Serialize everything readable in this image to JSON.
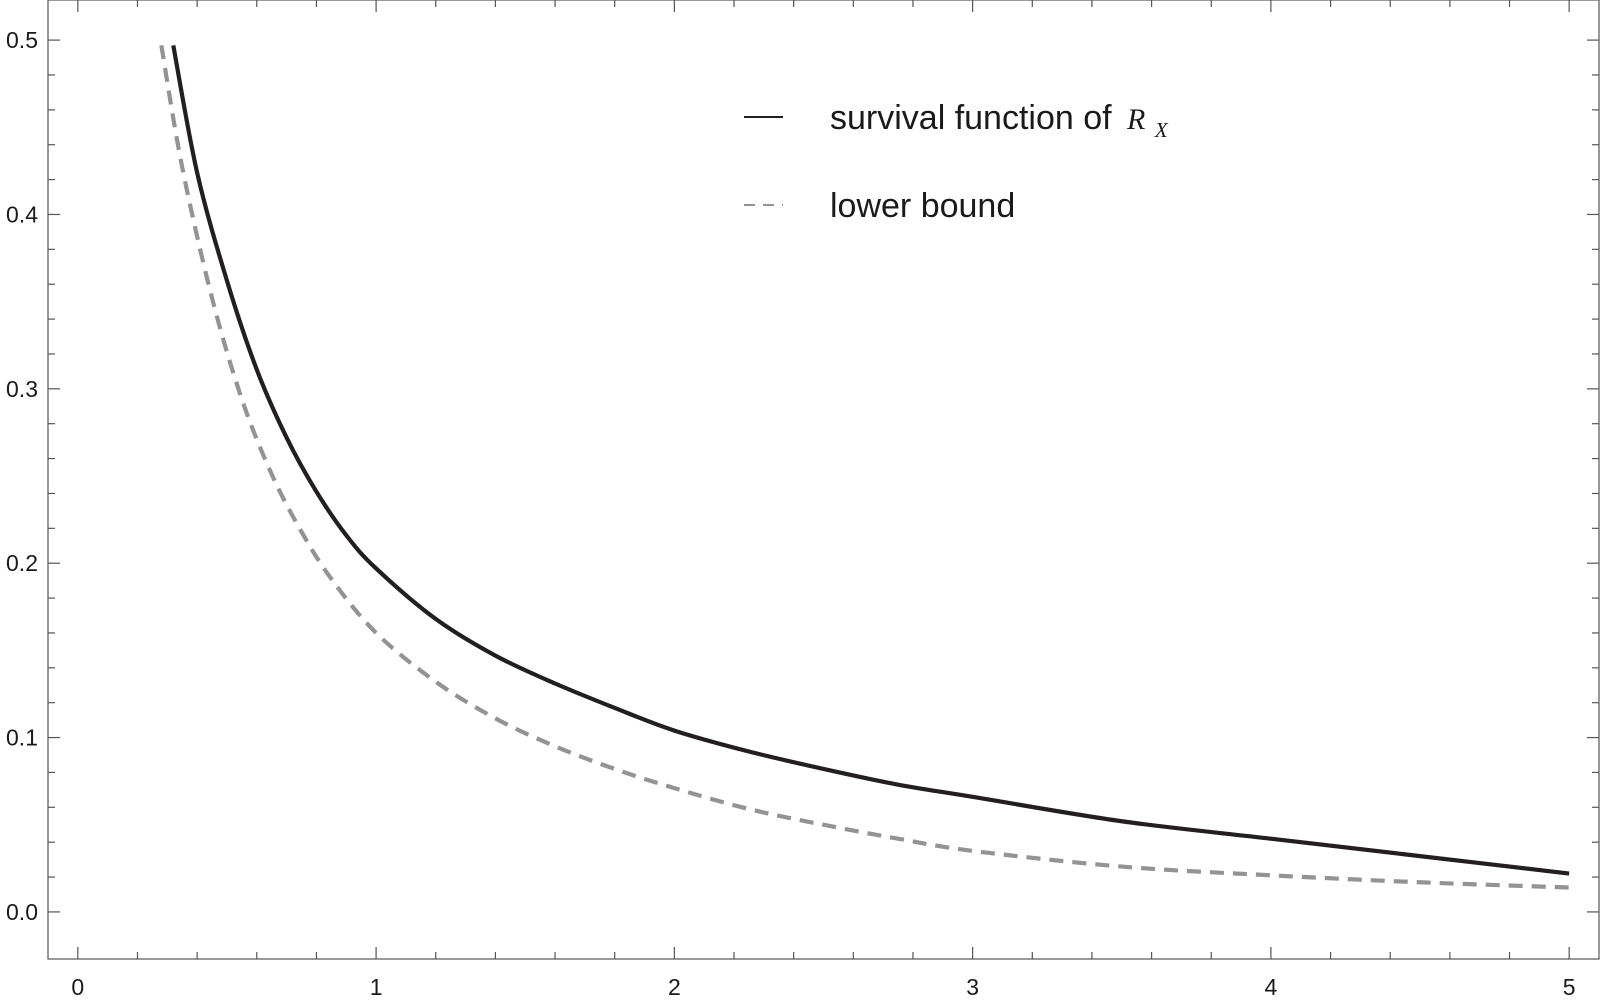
{
  "chart_data": {
    "type": "line",
    "xlim": [
      -0.1,
      5.1
    ],
    "ylim": [
      -0.027,
      0.523
    ],
    "x_ticks": [
      "0",
      "1",
      "2",
      "3",
      "4",
      "5"
    ],
    "y_ticks": [
      "0.0",
      "0.1",
      "0.2",
      "0.3",
      "0.4",
      "0.5"
    ],
    "frame_ticks_on_all_sides": true,
    "grid": false,
    "legend_position": "top-right",
    "series": [
      {
        "name": "survival function of",
        "name_math": "R",
        "name_math_subscript": "X",
        "color": "#231f20",
        "style": "solid",
        "x": [
          0.32,
          0.4,
          0.5,
          0.6,
          0.7,
          0.8,
          0.9,
          1.0,
          1.2,
          1.4,
          1.6,
          1.8,
          2.0,
          2.25,
          2.5,
          2.75,
          3.0,
          3.5,
          4.0,
          4.5,
          5.0
        ],
        "y": [
          0.497,
          0.424,
          0.362,
          0.311,
          0.272,
          0.241,
          0.216,
          0.197,
          0.168,
          0.147,
          0.131,
          0.117,
          0.104,
          0.092,
          0.082,
          0.073,
          0.066,
          0.052,
          0.042,
          0.032,
          0.022
        ]
      },
      {
        "name": "lower bound",
        "color": "#939393",
        "style": "dashed",
        "x": [
          0.28,
          0.35,
          0.45,
          0.55,
          0.65,
          0.75,
          0.85,
          1.0,
          1.2,
          1.4,
          1.6,
          1.8,
          2.0,
          2.25,
          2.5,
          2.75,
          3.0,
          3.5,
          4.0,
          4.5,
          5.0
        ],
        "y": [
          0.497,
          0.427,
          0.352,
          0.294,
          0.251,
          0.218,
          0.191,
          0.16,
          0.132,
          0.111,
          0.095,
          0.082,
          0.071,
          0.059,
          0.05,
          0.042,
          0.035,
          0.026,
          0.021,
          0.017,
          0.014
        ]
      }
    ]
  }
}
